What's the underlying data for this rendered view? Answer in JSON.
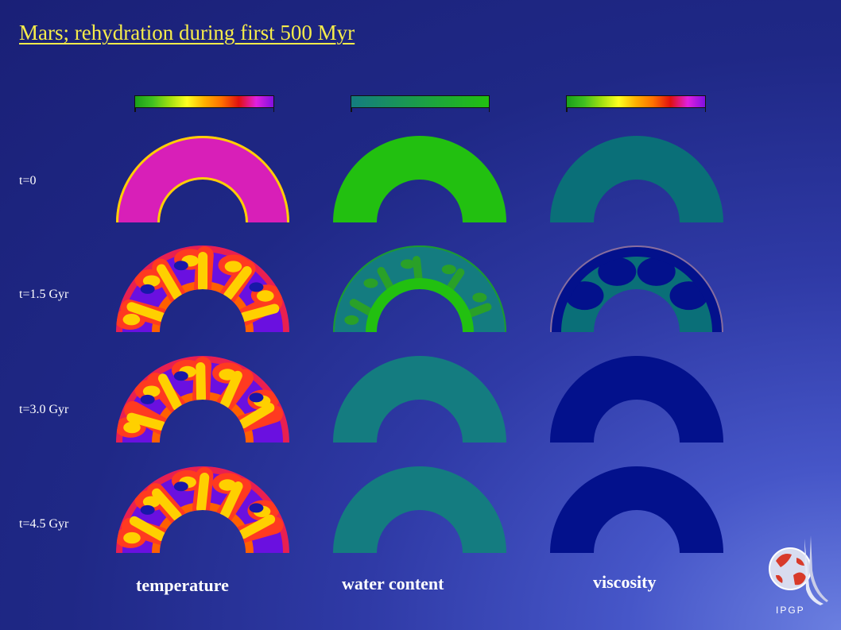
{
  "title": "Mars; rehydration during first 500 Myr",
  "row_labels": [
    "t=0",
    "t=1.5 Gyr",
    "t=3.0 Gyr",
    "t=4.5 Gyr"
  ],
  "column_labels": [
    "temperature",
    "water content",
    "viscosity"
  ],
  "logo_text": "IPGP",
  "colors": {
    "title": "#f6ec4a",
    "water_wet": "#22c010",
    "water_dry": "#147c80",
    "viscosity_low": "#0a6f78",
    "viscosity_high": "#03118c",
    "temperature_hot": "#ffd000",
    "temperature_mid": "#d81fb8",
    "temperature_cold": "#6a10e0"
  },
  "colorbars": {
    "temperature": [
      "#1aa01a",
      "#40c020",
      "#a0e010",
      "#ffff20",
      "#ffb000",
      "#ff7000",
      "#e01010",
      "#e020e0",
      "#8010e0"
    ],
    "water_content": [
      "#147c80",
      "#22c010"
    ],
    "viscosity": [
      "#1aa01a",
      "#40c020",
      "#a0e010",
      "#ffff20",
      "#ffb000",
      "#ff7000",
      "#e01010",
      "#e020e0",
      "#8010e0"
    ]
  }
}
